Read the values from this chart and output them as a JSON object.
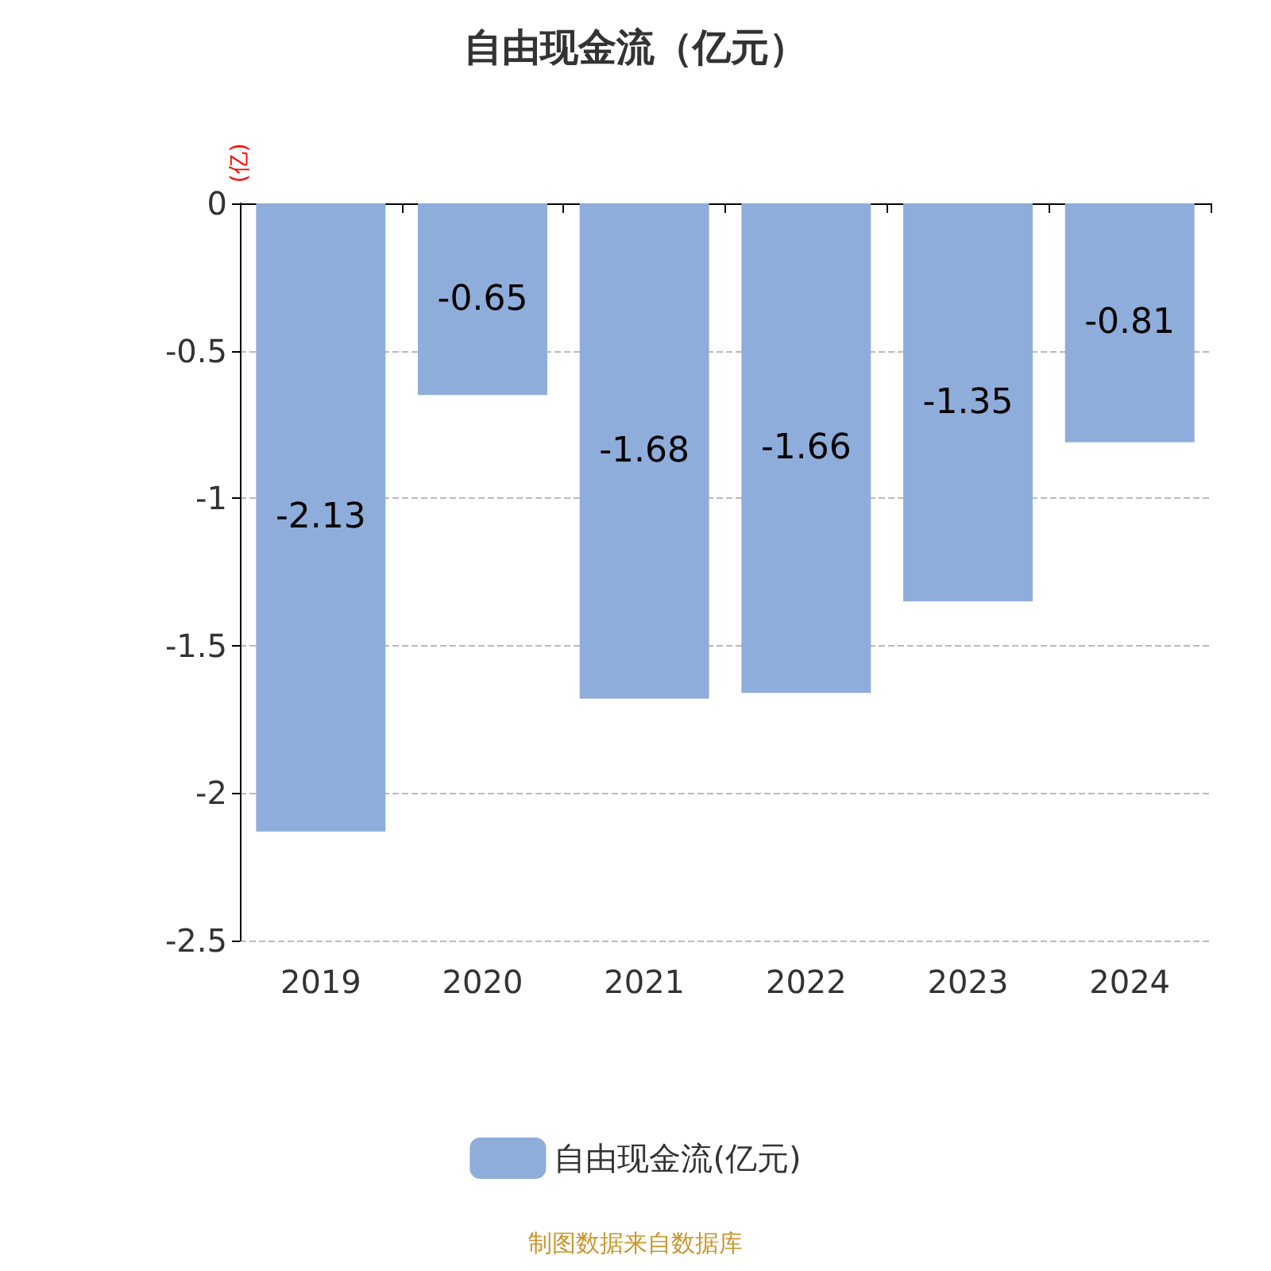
{
  "chart_data": {
    "type": "bar",
    "title": "自由现金流（亿元）",
    "ylabel": "(亿)",
    "categories": [
      "2019",
      "2020",
      "2021",
      "2022",
      "2023",
      "2024"
    ],
    "series": [
      {
        "name": "自由现金流(亿元)",
        "color": "#8eaddb",
        "values": [
          -2.13,
          -0.65,
          -1.68,
          -1.66,
          -1.35,
          -0.81
        ]
      }
    ],
    "ylim": [
      -2.5,
      0
    ],
    "yticks": [
      -2.5,
      -2,
      -1.5,
      -1,
      -0.5,
      0
    ],
    "grid": "y",
    "legend": "bottom",
    "data_labels": true,
    "annotations": [
      "制图数据来自数据库"
    ]
  }
}
